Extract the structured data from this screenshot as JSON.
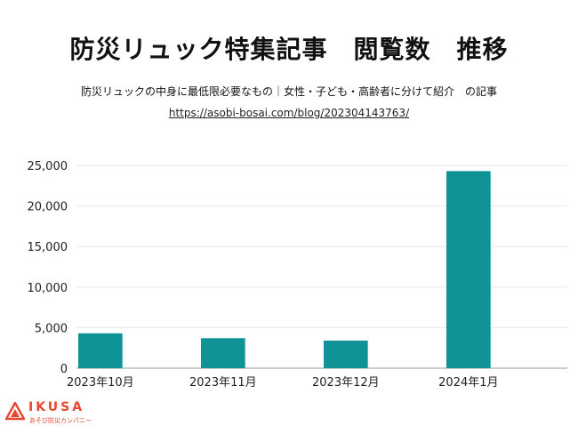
{
  "header": {
    "title": "防災リュック特集記事　閲覧数　推移",
    "subtitle": "防災リュックの中身に最低限必要なもの｜女性・子ども・高齢者に分けて紹介　の記事",
    "url": "https://asobi-bosai.com/blog/202304143763/"
  },
  "brand": {
    "name": "IKUSA",
    "tagline": "あそび防災カンパニー",
    "color": "#e8462e",
    "icon": "ikusa-logo-icon"
  },
  "chart_data": {
    "type": "bar",
    "title": "防災リュック特集記事　閲覧数　推移",
    "categories": [
      "2023年10月",
      "2023年11月",
      "2023年12月",
      "2024年1月"
    ],
    "values": [
      4300,
      3700,
      3400,
      24300
    ],
    "ylim": [
      0,
      25000
    ],
    "yticks": [
      0,
      5000,
      10000,
      15000,
      20000,
      25000
    ],
    "ytick_labels": [
      "0",
      "5,000",
      "10,000",
      "15,000",
      "20,000",
      "25,000"
    ],
    "grid": true,
    "legend": "none",
    "bar_color": "#0f9396",
    "grid_color": "#e6e6e6",
    "xlabel": "",
    "ylabel": ""
  }
}
